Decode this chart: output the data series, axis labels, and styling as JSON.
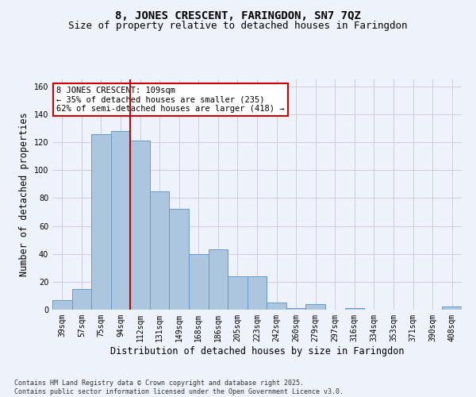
{
  "title_line1": "8, JONES CRESCENT, FARINGDON, SN7 7QZ",
  "title_line2": "Size of property relative to detached houses in Faringdon",
  "xlabel": "Distribution of detached houses by size in Faringdon",
  "ylabel": "Number of detached properties",
  "categories": [
    "39sqm",
    "57sqm",
    "75sqm",
    "94sqm",
    "112sqm",
    "131sqm",
    "149sqm",
    "168sqm",
    "186sqm",
    "205sqm",
    "223sqm",
    "242sqm",
    "260sqm",
    "279sqm",
    "297sqm",
    "316sqm",
    "334sqm",
    "353sqm",
    "371sqm",
    "390sqm",
    "408sqm"
  ],
  "values": [
    7,
    15,
    126,
    128,
    121,
    85,
    72,
    40,
    43,
    24,
    24,
    5,
    1,
    4,
    0,
    1,
    0,
    0,
    0,
    0,
    2
  ],
  "bar_color": "#adc6e0",
  "bar_edge_color": "#6699cc",
  "vline_index": 4,
  "vline_color": "#cc0000",
  "annotation_text": "8 JONES CRESCENT: 109sqm\n← 35% of detached houses are smaller (235)\n62% of semi-detached houses are larger (418) →",
  "annotation_box_color": "#ffffff",
  "annotation_box_edge_color": "#cc0000",
  "annotation_fontsize": 7.5,
  "ylim": [
    0,
    165
  ],
  "yticks": [
    0,
    20,
    40,
    60,
    80,
    100,
    120,
    140,
    160
  ],
  "grid_color": "#ccccdd",
  "background_color": "#eef2fa",
  "footer_text": "Contains HM Land Registry data © Crown copyright and database right 2025.\nContains public sector information licensed under the Open Government Licence v3.0.",
  "title_fontsize": 10,
  "subtitle_fontsize": 9,
  "axis_label_fontsize": 8.5,
  "tick_fontsize": 7,
  "footer_fontsize": 6
}
